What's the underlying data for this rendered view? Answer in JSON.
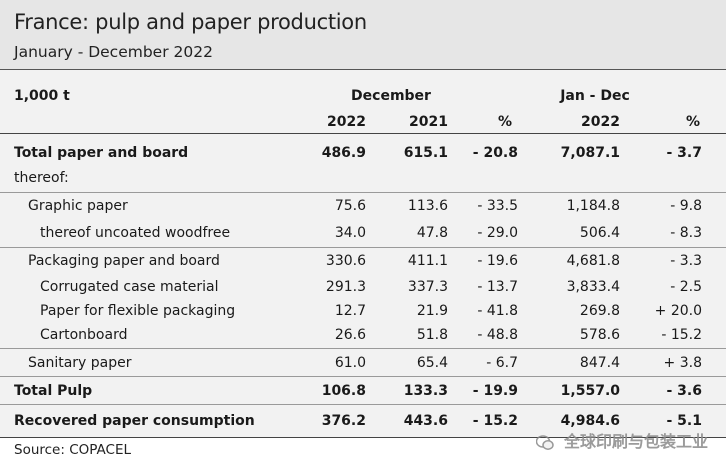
{
  "title": "France: pulp and paper production",
  "subtitle": "January - December 2022",
  "table": {
    "unit": "1,000 t",
    "group_december": "December",
    "group_janDec": "Jan - Dec",
    "col_2022": "2022",
    "col_2021": "2021",
    "col_pct": "%",
    "col_jd_2022": "2022",
    "col_jd_pct": "%",
    "rows": [
      {
        "label": "Total paper and board",
        "v2022": "486.9",
        "v2021": "615.1",
        "pct": "- 20.8",
        "jd": "7,087.1",
        "jdpct": "- 3.7"
      },
      {
        "label": "thereof:",
        "v2022": "",
        "v2021": "",
        "pct": "",
        "jd": "",
        "jdpct": ""
      },
      {
        "label": "Graphic paper",
        "v2022": "75.6",
        "v2021": "113.6",
        "pct": "- 33.5",
        "jd": "1,184.8",
        "jdpct": "- 9.8"
      },
      {
        "label": "thereof uncoated woodfree",
        "v2022": "34.0",
        "v2021": "47.8",
        "pct": "- 29.0",
        "jd": "506.4",
        "jdpct": "- 8.3"
      },
      {
        "label": "Packaging paper and board",
        "v2022": "330.6",
        "v2021": "411.1",
        "pct": "- 19.6",
        "jd": "4,681.8",
        "jdpct": "- 3.3"
      },
      {
        "label": "Corrugated case material",
        "v2022": "291.3",
        "v2021": "337.3",
        "pct": "- 13.7",
        "jd": "3,833.4",
        "jdpct": "- 2.5"
      },
      {
        "label": "Paper for flexible packaging",
        "v2022": "12.7",
        "v2021": "21.9",
        "pct": "- 41.8",
        "jd": "269.8",
        "jdpct": "+ 20.0"
      },
      {
        "label": "Cartonboard",
        "v2022": "26.6",
        "v2021": "51.8",
        "pct": "- 48.8",
        "jd": "578.6",
        "jdpct": "- 15.2"
      },
      {
        "label": "Sanitary paper",
        "v2022": "61.0",
        "v2021": "65.4",
        "pct": "- 6.7",
        "jd": "847.4",
        "jdpct": "+ 3.8"
      },
      {
        "label": "Total Pulp",
        "v2022": "106.8",
        "v2021": "133.3",
        "pct": "- 19.9",
        "jd": "1,557.0",
        "jdpct": "- 3.6"
      },
      {
        "label": "Recovered paper consumption",
        "v2022": "376.2",
        "v2021": "443.6",
        "pct": "- 15.2",
        "jd": "4,984.6",
        "jdpct": "- 5.1"
      }
    ]
  },
  "source": "Source: COPACEL",
  "watermark": "全球印刷与包装工业"
}
